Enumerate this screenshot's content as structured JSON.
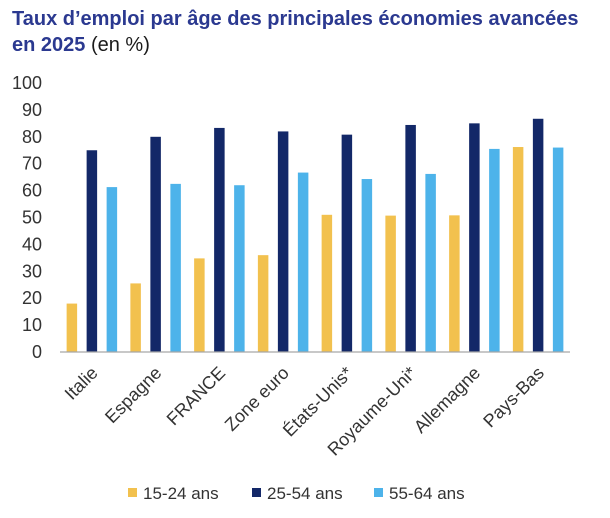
{
  "title": {
    "main": "Taux d’emploi par âge des principales économies avancées en 2025",
    "unit": "(en %)"
  },
  "chart_data": {
    "type": "bar",
    "title": "Taux d’emploi par âge des principales économies avancées en 2025 (en %)",
    "categories": [
      "Italie",
      "Espagne",
      "FRANCE",
      "Zone euro",
      "États-Unis*",
      "Royaume-Uni*",
      "Allemagne",
      "Pays-Bas"
    ],
    "series": [
      {
        "name": "15-24 ans",
        "color": "#f2c14e",
        "values": [
          18,
          25.5,
          34.8,
          36,
          51,
          50.7,
          50.8,
          76.2
        ]
      },
      {
        "name": "25-54 ans",
        "color": "#132868",
        "values": [
          75,
          80,
          83.3,
          82,
          80.8,
          84.4,
          85,
          86.7
        ]
      },
      {
        "name": "55-64 ans",
        "color": "#4db3ea",
        "values": [
          61.3,
          62.5,
          62,
          66.7,
          64.3,
          66.2,
          75.5,
          76
        ]
      }
    ],
    "yticks": [
      0,
      10,
      20,
      30,
      40,
      50,
      60,
      70,
      80,
      90,
      100
    ],
    "ylim": [
      0,
      100
    ],
    "grid": false,
    "legend": "bottom"
  }
}
